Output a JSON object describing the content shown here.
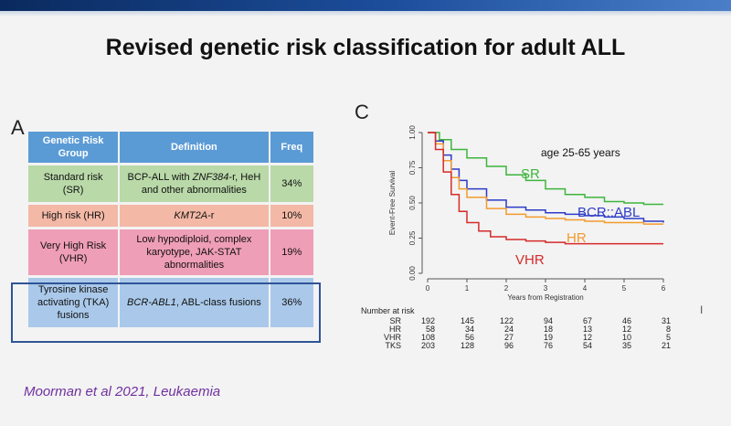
{
  "title": "Revised genetic risk classification for adult ALL",
  "panel_a_label": "A",
  "panel_c_label": "C",
  "citation": "Moorman et al 2021, Leukaemia",
  "table": {
    "headers": [
      "Genetic Risk Group",
      "Definition",
      "Freq"
    ],
    "rows": [
      {
        "group": "Standard risk (SR)",
        "definition_pre": "BCP-ALL with ",
        "definition_em": "ZNF384",
        "definition_post": "-r, HeH and other abnormalities",
        "freq": "34%"
      },
      {
        "group": "High risk (HR)",
        "definition_pre": "",
        "definition_em": "KMT2A",
        "definition_post": "-r",
        "freq": "10%"
      },
      {
        "group": "Very High Risk (VHR)",
        "definition_pre": "Low hypodiploid, complex karyotype, JAK-STAT abnormalities",
        "definition_em": "",
        "definition_post": "",
        "freq": "19%"
      },
      {
        "group": "Tyrosine kinase activating (TKA) fusions",
        "definition_pre": "",
        "definition_em": "BCR-ABL1",
        "definition_post": ", ABL-class fusions",
        "freq": "36%"
      }
    ]
  },
  "chart_data": {
    "type": "line",
    "title": "",
    "annotation": "age 25-65 years",
    "xlabel": "Years from Registration",
    "ylabel": "Event-Free Survival",
    "xlim": [
      0,
      6
    ],
    "ylim": [
      0,
      1
    ],
    "x_ticks": [
      "0",
      "1",
      "2",
      "3",
      "4",
      "5",
      "6"
    ],
    "y_ticks": [
      "0.00",
      "0.25",
      "0.50",
      "0.75",
      "1.00"
    ],
    "series": [
      {
        "name": "SR",
        "color": "#3cb53c",
        "x": [
          0,
          0.3,
          0.6,
          1,
          1.5,
          2,
          2.5,
          3,
          3.5,
          4,
          4.5,
          5,
          5.5,
          6
        ],
        "y": [
          1,
          0.95,
          0.88,
          0.82,
          0.76,
          0.7,
          0.66,
          0.6,
          0.56,
          0.54,
          0.51,
          0.5,
          0.49,
          0.49
        ]
      },
      {
        "name": "BCR::ABL",
        "color": "#2e3bc8",
        "x": [
          0,
          0.2,
          0.4,
          0.6,
          0.8,
          1,
          1.5,
          2,
          2.5,
          3,
          3.5,
          4,
          4.5,
          5,
          5.5,
          6
        ],
        "y": [
          1,
          0.94,
          0.84,
          0.74,
          0.66,
          0.6,
          0.52,
          0.47,
          0.45,
          0.43,
          0.42,
          0.41,
          0.4,
          0.39,
          0.37,
          0.36
        ]
      },
      {
        "name": "HR",
        "color": "#f39b2d",
        "x": [
          0,
          0.2,
          0.4,
          0.6,
          0.8,
          1,
          1.5,
          2,
          2.5,
          3,
          3.5,
          4,
          4.5,
          5,
          5.5,
          6
        ],
        "y": [
          1,
          0.92,
          0.8,
          0.68,
          0.6,
          0.54,
          0.46,
          0.42,
          0.4,
          0.39,
          0.38,
          0.37,
          0.36,
          0.36,
          0.35,
          0.35
        ]
      },
      {
        "name": "VHR",
        "color": "#d62a2a",
        "x": [
          0,
          0.2,
          0.4,
          0.6,
          0.8,
          1,
          1.3,
          1.6,
          2,
          2.5,
          3,
          3.5,
          4,
          5,
          6
        ],
        "y": [
          1,
          0.88,
          0.72,
          0.56,
          0.44,
          0.36,
          0.3,
          0.26,
          0.24,
          0.23,
          0.22,
          0.21,
          0.21,
          0.21,
          0.21
        ]
      }
    ],
    "numbers_at_risk": {
      "title": "Number at risk",
      "rows": [
        {
          "group": "SR",
          "values": [
            192,
            145,
            122,
            94,
            67,
            46,
            31
          ]
        },
        {
          "group": "HR",
          "values": [
            58,
            34,
            24,
            18,
            13,
            12,
            8
          ]
        },
        {
          "group": "VHR",
          "values": [
            108,
            56,
            27,
            19,
            12,
            10,
            5
          ]
        },
        {
          "group": "TKS",
          "values": [
            203,
            128,
            96,
            76,
            54,
            35,
            21
          ]
        }
      ]
    }
  }
}
